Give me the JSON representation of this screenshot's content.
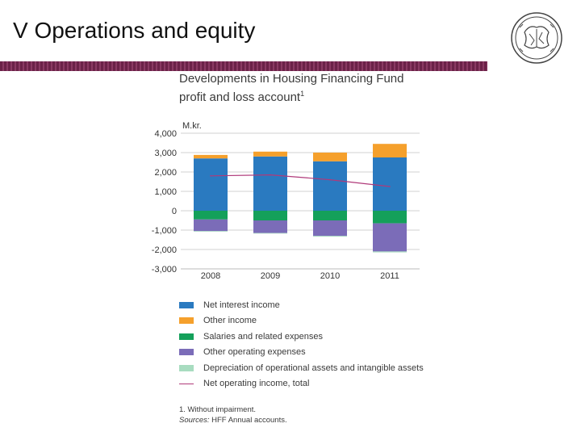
{
  "slide": {
    "title": "V Operations and equity"
  },
  "logo": {
    "name": "institution-seal-icon"
  },
  "colors": {
    "band": "#6b2248",
    "grid": "#d0d0d0"
  },
  "chart_data": {
    "type": "bar",
    "stacked": true,
    "title_line1": "Developments in Housing Financing Fund",
    "title_line2": "profit and loss account",
    "title_footnote_mark": "1",
    "unit_label": "M.kr.",
    "categories": [
      "2008",
      "2009",
      "2010",
      "2011"
    ],
    "ylim": [
      -3000,
      4000
    ],
    "yticks": [
      4000,
      3000,
      2000,
      1000,
      0,
      -1000,
      -2000,
      -3000
    ],
    "ytick_labels": [
      "4,000",
      "3,000",
      "2,000",
      "1,000",
      "0",
      "-1,000",
      "-2,000",
      "-3,000"
    ],
    "grid": true,
    "series": [
      {
        "name": "Net interest income",
        "color": "#2a7ac0",
        "stack": "positive",
        "values": [
          2700,
          2800,
          2550,
          2750
        ]
      },
      {
        "name": "Other income",
        "color": "#f5a02c",
        "stack": "positive",
        "values": [
          180,
          250,
          450,
          700
        ]
      },
      {
        "name": "Salaries and related expenses",
        "color": "#14a05a",
        "stack": "negative",
        "values": [
          -450,
          -500,
          -500,
          -650
        ]
      },
      {
        "name": "Other operating expenses",
        "color": "#7b6cb8",
        "stack": "negative",
        "values": [
          -600,
          -650,
          -800,
          -1450
        ]
      },
      {
        "name": "Depreciation of operational assets and intangible assets",
        "color": "#a8dcc0",
        "stack": "negative",
        "values": [
          -30,
          -30,
          -40,
          -50
        ]
      }
    ],
    "line_series": {
      "name": "Net operating income, total",
      "color": "#b03a7a",
      "values": [
        1800,
        1850,
        1600,
        1250
      ]
    },
    "legend_position": "bottom",
    "footnote": "1. Without impairment.",
    "source_label": "Sources:",
    "source_text": "HFF Annual accounts."
  }
}
